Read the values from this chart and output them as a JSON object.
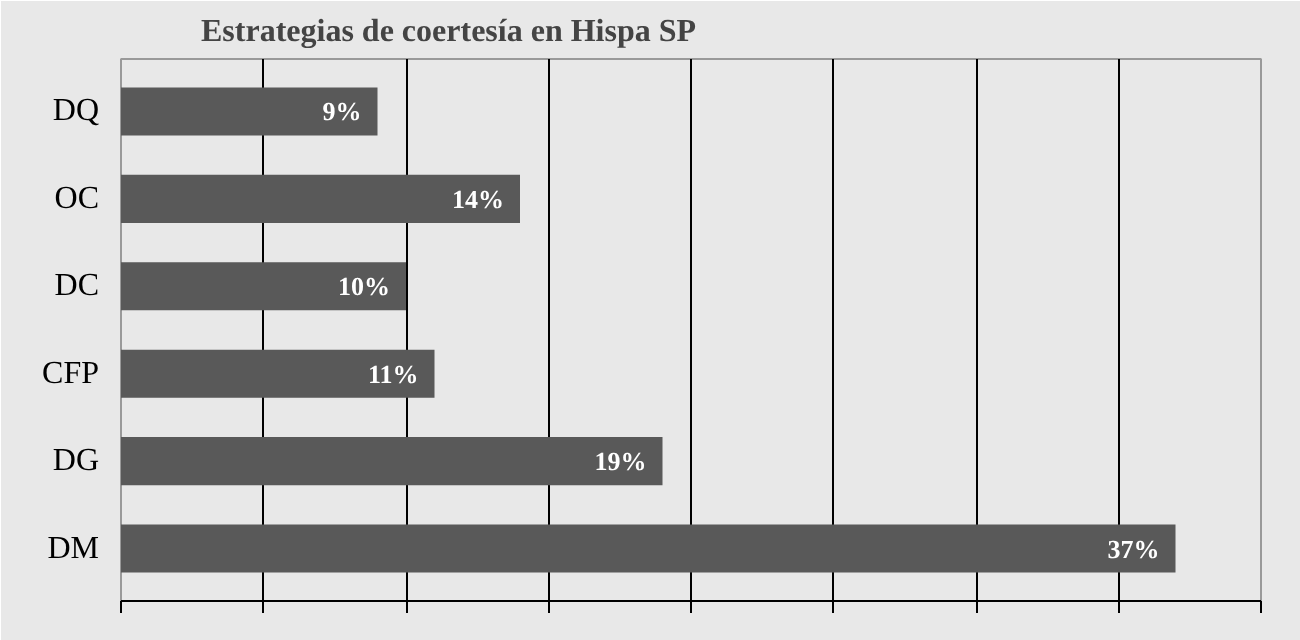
{
  "chart_data": {
    "type": "bar",
    "orientation": "horizontal",
    "title": "Estrategias de coertesía en Hispa SP",
    "categories": [
      "DQ",
      "OC",
      "DC",
      "CFP",
      "DG",
      "DM"
    ],
    "values": [
      9,
      14,
      10,
      11,
      19,
      37
    ],
    "value_labels": [
      "9%",
      "14%",
      "10%",
      "11%",
      "19%",
      "37%"
    ],
    "color": "#595959",
    "xlim": [
      0,
      40
    ],
    "xticks": [
      {
        "value": 0,
        "label": null
      },
      {
        "value": 5,
        "label": null
      },
      {
        "value": 10,
        "label": null
      },
      {
        "value": 15,
        "label": null
      },
      {
        "value": 20,
        "label": null
      },
      {
        "value": 25,
        "label": null
      },
      {
        "value": 30,
        "label": null
      },
      {
        "value": 35,
        "label": null
      },
      {
        "value": 40,
        "label": null
      }
    ],
    "grid": "x",
    "tick_labels": "y"
  }
}
